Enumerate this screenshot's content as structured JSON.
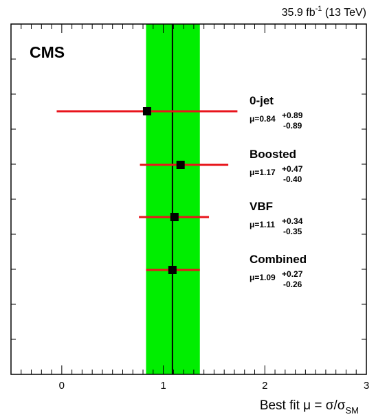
{
  "chart_data": {
    "type": "errorbar",
    "experiment": "CMS",
    "luminosity": {
      "value": "35.9 fb",
      "exponent": "-1",
      "energy": " (13 TeV)"
    },
    "xlabel": {
      "main": "Best fit μ = σ/σ",
      "subscript": "SM"
    },
    "xlim": [
      -0.5,
      3
    ],
    "xticks": [
      "0",
      "1",
      "2",
      "3"
    ],
    "combined_band": {
      "center": 1.09,
      "low": 0.83,
      "high": 1.36,
      "color": "#00ee00"
    },
    "points": [
      {
        "name": "0-jet",
        "value": 0.84,
        "err_up": 0.89,
        "err_down": 0.89,
        "mu_label": "μ=0.84",
        "err_up_label": "+0.89",
        "err_down_label": "-0.89"
      },
      {
        "name": "Boosted",
        "value": 1.17,
        "err_up": 0.47,
        "err_down": 0.4,
        "mu_label": "μ=1.17",
        "err_up_label": "+0.47",
        "err_down_label": "-0.40"
      },
      {
        "name": "VBF",
        "value": 1.11,
        "err_up": 0.34,
        "err_down": 0.35,
        "mu_label": "μ=1.11",
        "err_up_label": "+0.34",
        "err_down_label": "-0.35"
      },
      {
        "name": "Combined",
        "value": 1.09,
        "err_up": 0.27,
        "err_down": 0.26,
        "mu_label": "μ=1.09",
        "err_up_label": "+0.27",
        "err_down_label": "-0.26"
      }
    ],
    "error_bar_color": "#e8141c",
    "marker_color": "#000000",
    "grid": false
  }
}
